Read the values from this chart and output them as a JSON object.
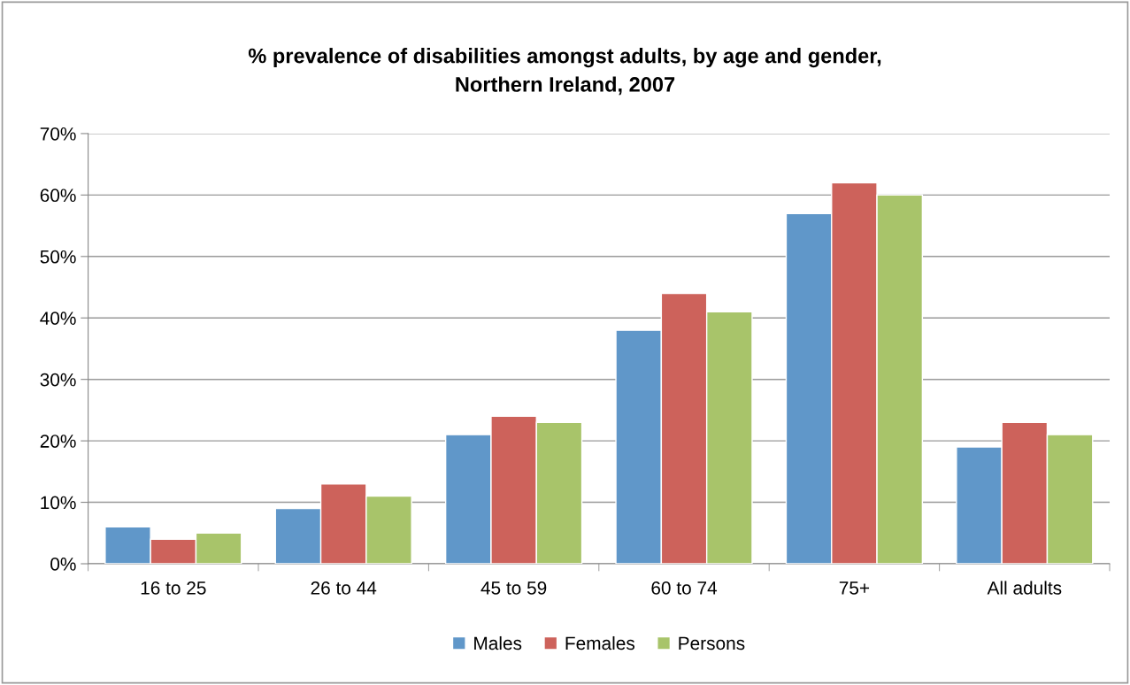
{
  "chart_data": {
    "type": "bar",
    "title": "% prevalence of disabilities amongst adults, by age and gender,\nNorthern Ireland, 2007",
    "categories": [
      "16 to 25",
      "26 to 44",
      "45 to 59",
      "60 to 74",
      "75+",
      "All adults"
    ],
    "series": [
      {
        "name": "Males",
        "color": "#6097c9",
        "values": [
          6,
          9,
          21,
          38,
          57,
          19
        ]
      },
      {
        "name": "Females",
        "color": "#cd625b",
        "values": [
          4,
          13,
          24,
          44,
          62,
          23
        ]
      },
      {
        "name": "Persons",
        "color": "#a8c46a",
        "values": [
          5,
          11,
          23,
          41,
          60,
          21
        ]
      }
    ],
    "ylim": [
      0,
      70
    ],
    "yticks": [
      {
        "value": 0,
        "label": "0%"
      },
      {
        "value": 10,
        "label": "10%"
      },
      {
        "value": 20,
        "label": "20%"
      },
      {
        "value": 30,
        "label": "30%"
      },
      {
        "value": 40,
        "label": "40%"
      },
      {
        "value": 50,
        "label": "50%"
      },
      {
        "value": 60,
        "label": "60%"
      },
      {
        "value": 70,
        "label": "70%"
      }
    ],
    "grid": "y",
    "legend": "bottom"
  }
}
